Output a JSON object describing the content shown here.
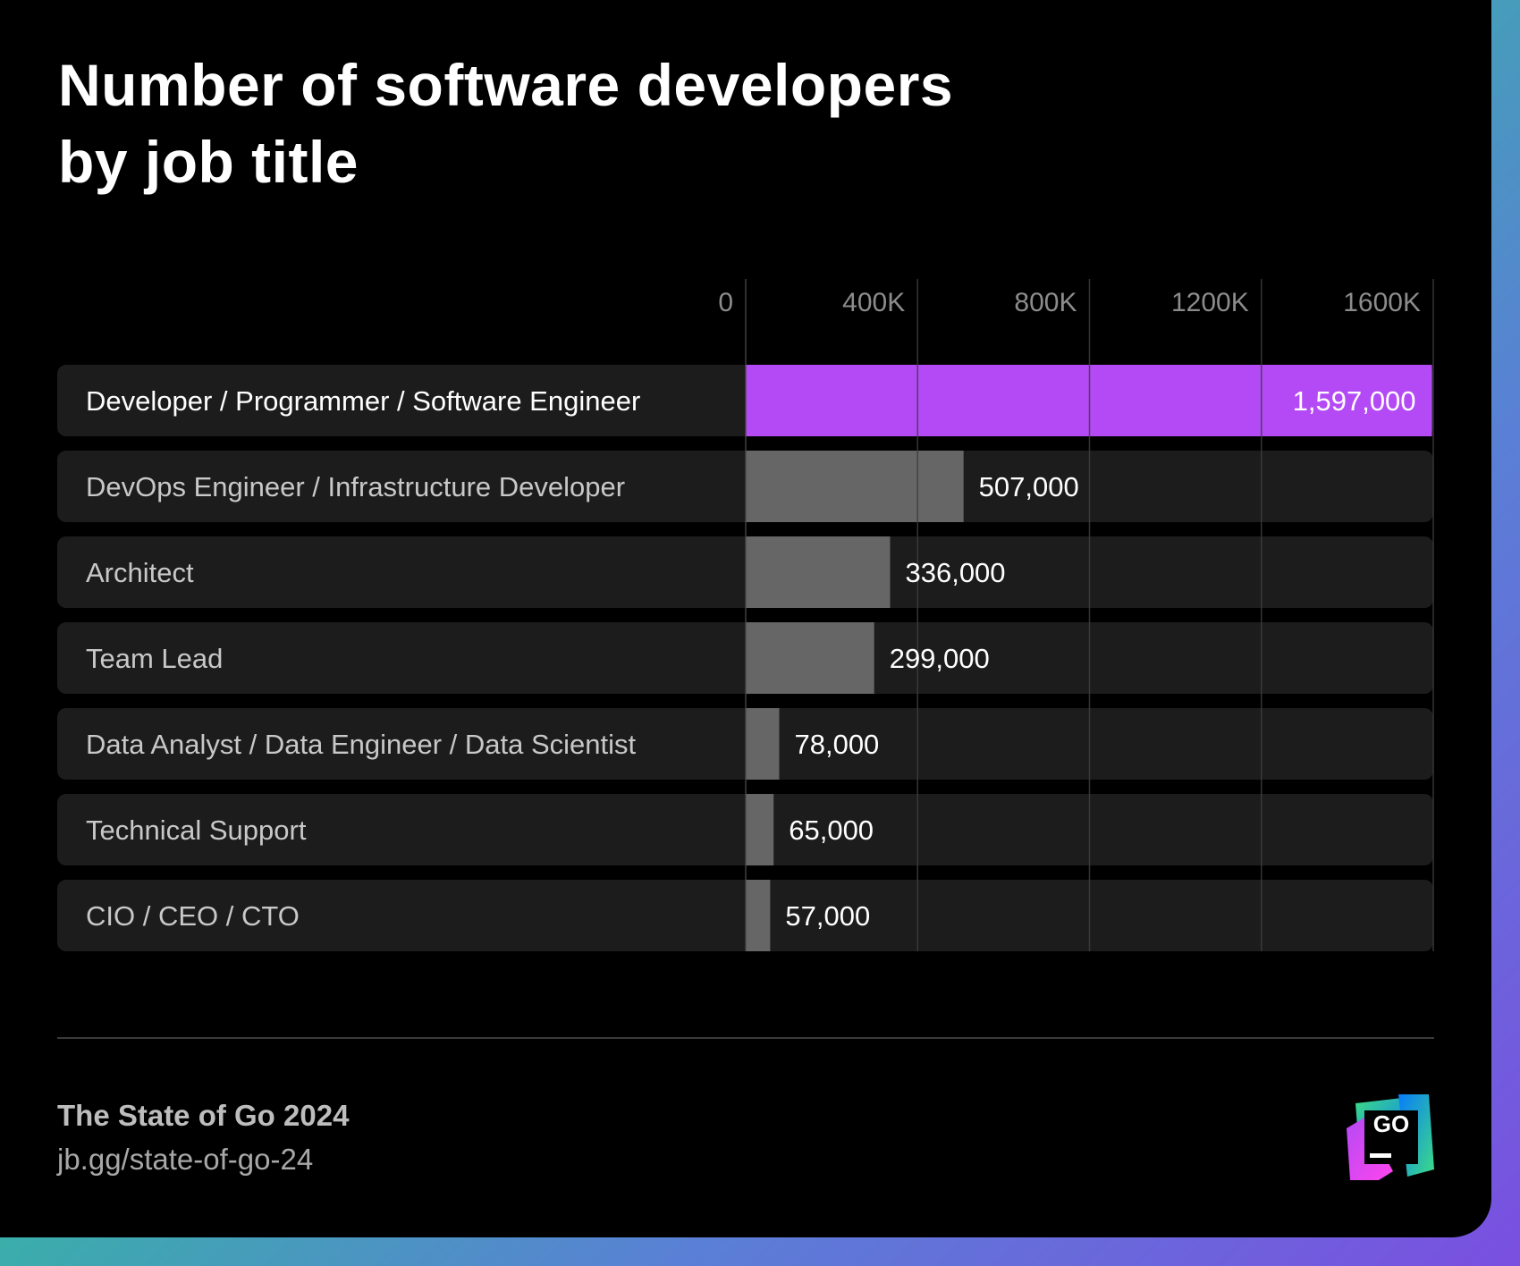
{
  "chart_data": {
    "type": "bar",
    "orientation": "horizontal",
    "title": "Number of software developers by job title",
    "title_lines": [
      "Number of software developers",
      "by job title"
    ],
    "categories": [
      "Developer / Programmer / Software Engineer",
      "DevOps Engineer / Infrastructure Developer",
      "Architect",
      "Team Lead",
      "Data Analyst / Data Engineer / Data Scientist",
      "Technical Support",
      "CIO / CEO / CTO"
    ],
    "values": [
      1597000,
      507000,
      336000,
      299000,
      78000,
      65000,
      57000
    ],
    "value_labels": [
      "1,597,000",
      "507,000",
      "336,000",
      "299,000",
      "78,000",
      "65,000",
      "57,000"
    ],
    "xlim": [
      0,
      1600000
    ],
    "x_ticks": [
      0,
      400000,
      800000,
      1200000,
      1600000
    ],
    "x_tick_labels": [
      "0",
      "400K",
      "800K",
      "1200K",
      "1600K"
    ],
    "grid": true,
    "legend": "none",
    "colors": {
      "highlight": "#b44af5",
      "bar": "#666666",
      "row_background": "#1c1c1c",
      "gridline": "#3d3d3d"
    }
  },
  "footer": {
    "title": "The State of Go 2024",
    "link": "jb.gg/state-of-go-24"
  },
  "logo": {
    "text": "GO",
    "name": "goland-logo"
  }
}
